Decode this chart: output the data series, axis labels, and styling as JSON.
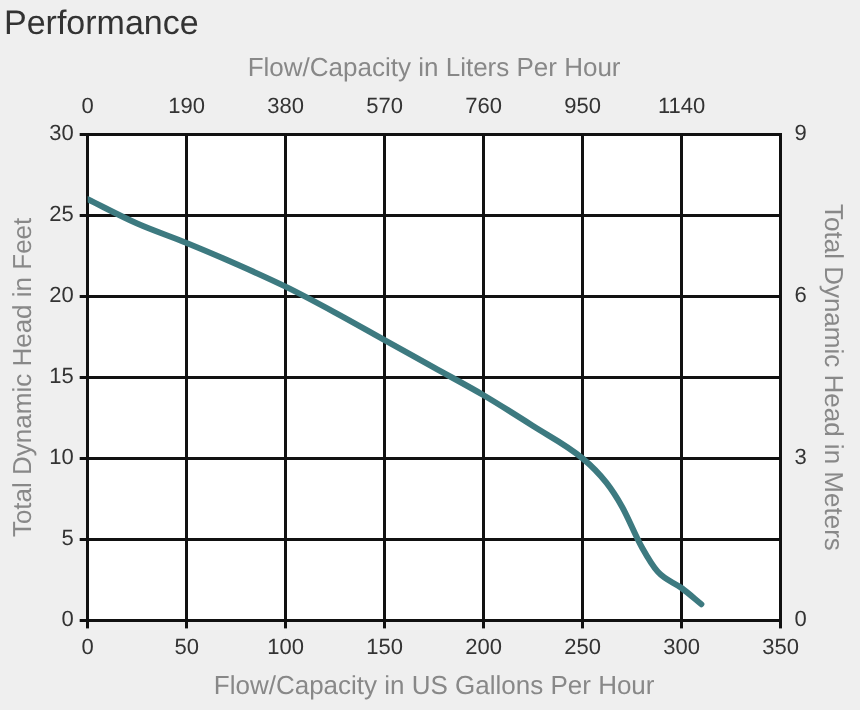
{
  "chart_data": {
    "type": "line",
    "title": "Performance",
    "xlabel": "Flow/Capacity in US Gallons Per Hour",
    "ylabel": "Total Dynamic Head in Feet",
    "y2label": "Total Dynamic Head in Meters",
    "x2label": "Flow/Capacity in Liters Per Hour",
    "x": [
      0,
      25,
      50,
      75,
      100,
      125,
      150,
      175,
      200,
      225,
      250,
      262,
      270,
      280,
      288,
      300,
      310
    ],
    "series": [
      {
        "color": "#3d7a80",
        "values": [
          26,
          24.5,
          23.3,
          22,
          20.6,
          19,
          17.3,
          15.6,
          13.9,
          12,
          10,
          8.5,
          7,
          4.5,
          3,
          2,
          1
        ]
      }
    ],
    "xlim": [
      0,
      350
    ],
    "xticks": [
      0,
      50,
      100,
      150,
      200,
      250,
      300,
      350
    ],
    "ylim": [
      0,
      30
    ],
    "yticks": [
      0,
      5,
      10,
      15,
      20,
      25,
      30
    ],
    "x2lim": [
      0,
      1330
    ],
    "x2ticks": [
      0,
      190,
      380,
      570,
      760,
      950,
      1140
    ],
    "y2lim": [
      0,
      9
    ],
    "y2ticks": [
      0,
      3,
      6,
      9
    ],
    "grid": true,
    "legend": false,
    "marker": "none",
    "line_style": "solid"
  }
}
